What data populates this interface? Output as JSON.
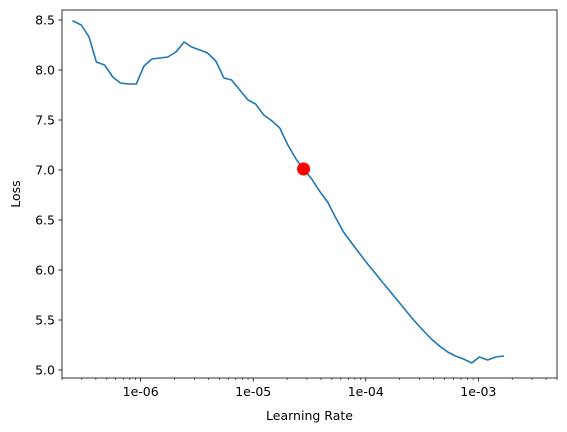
{
  "chart_data": {
    "type": "line",
    "title": "",
    "xlabel": "Learning Rate",
    "ylabel": "Loss",
    "x_scale": "log",
    "xlim": [
      2e-07,
      0.005
    ],
    "ylim": [
      4.92,
      8.6
    ],
    "grid": false,
    "xticks": [
      {
        "value": 1e-06,
        "label": "1e-06"
      },
      {
        "value": 1e-05,
        "label": "1e-05"
      },
      {
        "value": 0.0001,
        "label": "1e-04"
      },
      {
        "value": 0.001,
        "label": "1e-03"
      }
    ],
    "yticks": [
      {
        "value": 5.0,
        "label": "5.0"
      },
      {
        "value": 5.5,
        "label": "5.5"
      },
      {
        "value": 6.0,
        "label": "6.0"
      },
      {
        "value": 6.5,
        "label": "6.5"
      },
      {
        "value": 7.0,
        "label": "7.0"
      },
      {
        "value": 7.5,
        "label": "7.5"
      },
      {
        "value": 8.0,
        "label": "8.0"
      },
      {
        "value": 8.5,
        "label": "8.5"
      }
    ],
    "series": [
      {
        "color": "#1f77b4",
        "points": [
          [
            2.51e-07,
            8.49
          ],
          [
            2.97e-07,
            8.45
          ],
          [
            3.48e-07,
            8.33
          ],
          [
            4.04e-07,
            8.08
          ],
          [
            4.78e-07,
            8.05
          ],
          [
            5.65e-07,
            7.93
          ],
          [
            6.61e-07,
            7.87
          ],
          [
            7.82e-07,
            7.86
          ],
          [
            9.14e-07,
            7.86
          ],
          [
            1.07e-06,
            8.04
          ],
          [
            1.26e-06,
            8.11
          ],
          [
            1.49e-06,
            8.12
          ],
          [
            1.74e-06,
            8.13
          ],
          [
            2.06e-06,
            8.18
          ],
          [
            2.43e-06,
            8.28
          ],
          [
            2.84e-06,
            8.23
          ],
          [
            3.36e-06,
            8.2
          ],
          [
            3.93e-06,
            8.17
          ],
          [
            4.65e-06,
            8.09
          ],
          [
            5.49e-06,
            7.92
          ],
          [
            6.42e-06,
            7.9
          ],
          [
            7.59e-06,
            7.8
          ],
          [
            8.99e-06,
            7.7
          ],
          [
            1.05e-05,
            7.66
          ],
          [
            1.24e-05,
            7.55
          ],
          [
            1.47e-05,
            7.49
          ],
          [
            1.72e-05,
            7.42
          ],
          [
            2.03e-05,
            7.25
          ],
          [
            2.4e-05,
            7.11
          ],
          [
            2.8e-05,
            7.01
          ],
          [
            3.31e-05,
            6.91
          ],
          [
            3.88e-05,
            6.79
          ],
          [
            4.58e-05,
            6.68
          ],
          [
            5.42e-05,
            6.52
          ],
          [
            6.34e-05,
            6.38
          ],
          [
            7.49e-05,
            6.27
          ],
          [
            8.87e-05,
            6.16
          ],
          [
            0.000104,
            6.06
          ],
          [
            0.000123,
            5.96
          ],
          [
            0.000145,
            5.86
          ],
          [
            0.000169,
            5.77
          ],
          [
            0.0002,
            5.67
          ],
          [
            0.000236,
            5.57
          ],
          [
            0.000276,
            5.48
          ],
          [
            0.000327,
            5.39
          ],
          [
            0.000383,
            5.31
          ],
          [
            0.000452,
            5.24
          ],
          [
            0.000535,
            5.18
          ],
          [
            0.000626,
            5.14
          ],
          [
            0.000739,
            5.11
          ],
          [
            0.000875,
            5.07
          ],
          [
            0.00102,
            5.13
          ],
          [
            0.00121,
            5.1
          ],
          [
            0.00143,
            5.13
          ],
          [
            0.00167,
            5.14
          ]
        ]
      }
    ],
    "marker": {
      "x": 2.8e-05,
      "y": 7.01,
      "color": "#ff0000"
    }
  }
}
